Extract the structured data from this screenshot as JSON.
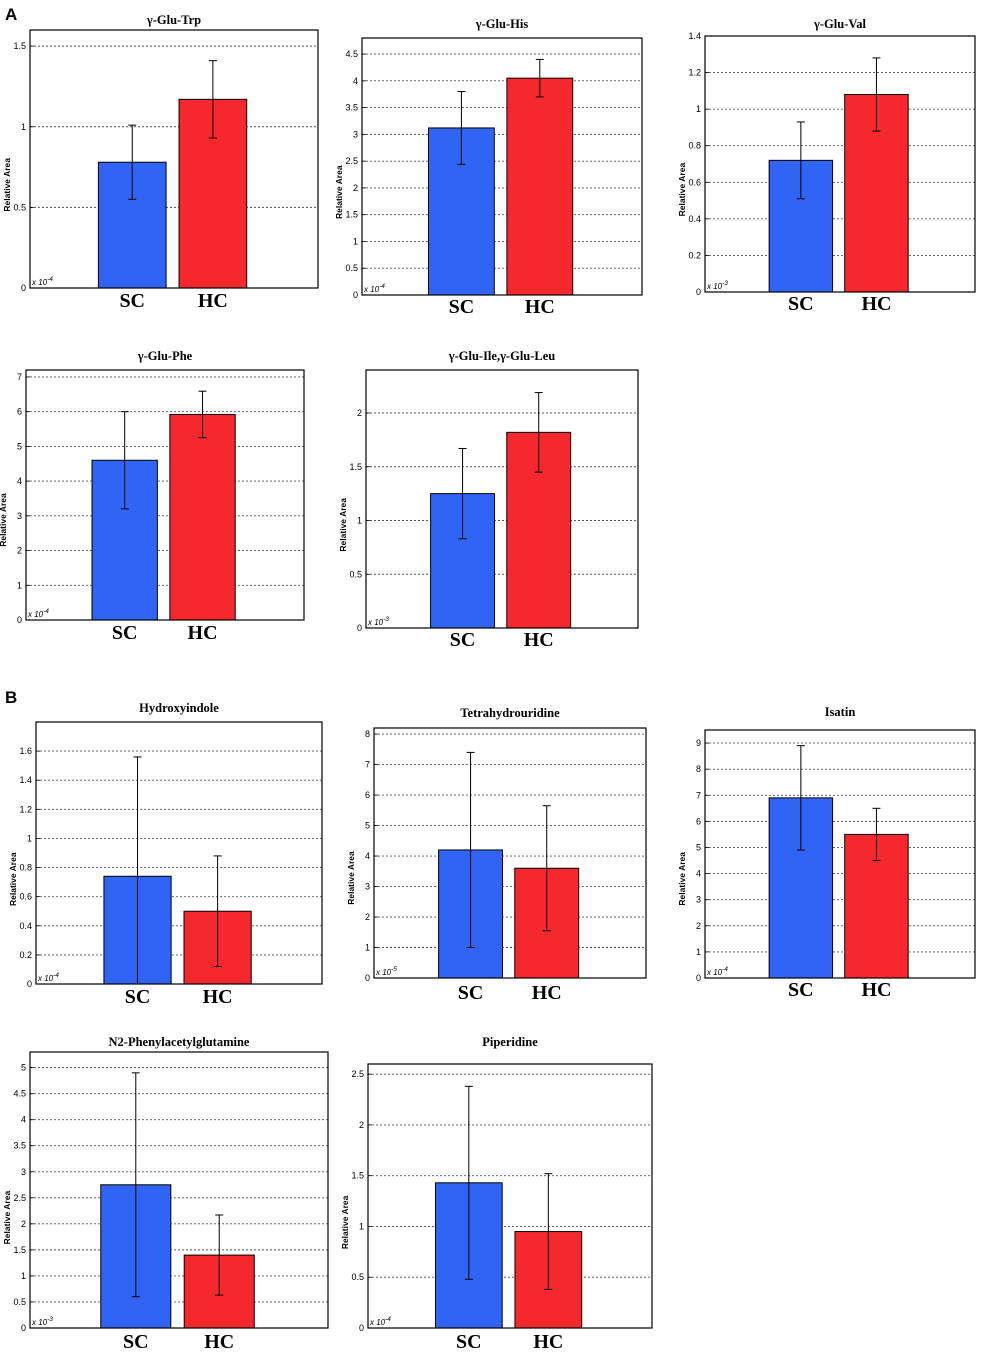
{
  "panel_labels": [
    "A",
    "B"
  ],
  "colors": {
    "SC": "#2f64f5",
    "HC": "#f5282d",
    "grid": "#555555",
    "frame": "#000000"
  },
  "chart_data": [
    {
      "type": "bar",
      "panel": "A",
      "title": "γ-Glu-Trp",
      "categories": [
        "SC",
        "HC"
      ],
      "values": [
        0.78,
        1.17
      ],
      "errors": [
        0.23,
        0.24
      ],
      "ylim": [
        0,
        1.6
      ],
      "ticks": [
        0,
        0.5,
        1,
        1.5
      ],
      "tick_labels": [
        "0",
        "0.5",
        "1",
        "1.5"
      ],
      "ylabel": "Relative Area",
      "multiplier": "x 10-4",
      "grid": true
    },
    {
      "type": "bar",
      "panel": "A",
      "title": "γ-Glu-His",
      "categories": [
        "SC",
        "HC"
      ],
      "values": [
        3.12,
        4.05
      ],
      "errors": [
        0.68,
        0.35
      ],
      "ylim": [
        0,
        4.8
      ],
      "ticks": [
        0,
        0.5,
        1,
        1.5,
        2,
        2.5,
        3,
        3.5,
        4,
        4.5
      ],
      "tick_labels": [
        "0",
        "0.5",
        "1",
        "1.5",
        "2",
        "2.5",
        "3",
        "3.5",
        "4",
        "4.5"
      ],
      "ylabel": "Relative Area",
      "multiplier": "x 10-4",
      "grid": true
    },
    {
      "type": "bar",
      "panel": "A",
      "title": "γ-Glu-Val",
      "categories": [
        "SC",
        "HC"
      ],
      "values": [
        0.72,
        1.08
      ],
      "errors": [
        0.21,
        0.2
      ],
      "ylim": [
        0,
        1.4
      ],
      "ticks": [
        0,
        0.2,
        0.4,
        0.6,
        0.8,
        1,
        1.2,
        1.4
      ],
      "tick_labels": [
        "0",
        "0.2",
        "0.4",
        "0.6",
        "0.8",
        "1",
        "1.2",
        "1.4"
      ],
      "ylabel": "Relative Area",
      "multiplier": "x 10-3",
      "grid": true
    },
    {
      "type": "bar",
      "panel": "A",
      "title": "γ-Glu-Phe",
      "categories": [
        "SC",
        "HC"
      ],
      "values": [
        4.6,
        5.92
      ],
      "errors": [
        1.4,
        0.67
      ],
      "ylim": [
        0,
        7.2
      ],
      "ticks": [
        0,
        1,
        2,
        3,
        4,
        5,
        6,
        7
      ],
      "tick_labels": [
        "0",
        "1",
        "2",
        "3",
        "4",
        "5",
        "6",
        "7"
      ],
      "ylabel": "Relative Area",
      "multiplier": "x 10-4",
      "grid": true
    },
    {
      "type": "bar",
      "panel": "A",
      "title": "γ-Glu-Ile,γ-Glu-Leu",
      "categories": [
        "SC",
        "HC"
      ],
      "values": [
        1.25,
        1.82
      ],
      "errors": [
        0.42,
        0.37
      ],
      "ylim": [
        0,
        2.4
      ],
      "ticks": [
        0,
        0.5,
        1,
        1.5,
        2
      ],
      "tick_labels": [
        "0",
        "0.5",
        "1",
        "1.5",
        "2"
      ],
      "ylabel": "Relative Area",
      "multiplier": "x 10-3",
      "grid": true
    },
    {
      "type": "bar",
      "panel": "B",
      "title": "Hydroxyindole",
      "categories": [
        "SC",
        "HC"
      ],
      "values": [
        0.74,
        0.5
      ],
      "errors": [
        0.82,
        0.38
      ],
      "ylim": [
        0,
        1.8
      ],
      "ticks": [
        0,
        0.2,
        0.4,
        0.6,
        0.8,
        1,
        1.2,
        1.4,
        1.6
      ],
      "tick_labels": [
        "0",
        "0.2",
        "0.4",
        "0.6",
        "0.8",
        "1",
        "1.2",
        "1.4",
        "1.6"
      ],
      "ylabel": "Relative Area",
      "multiplier": "x 10-4",
      "grid": true
    },
    {
      "type": "bar",
      "panel": "B",
      "title": "Tetrahydrouridine",
      "categories": [
        "SC",
        "HC"
      ],
      "values": [
        4.2,
        3.6
      ],
      "errors": [
        3.2,
        2.05
      ],
      "ylim": [
        0,
        8.2
      ],
      "ticks": [
        0,
        1,
        2,
        3,
        4,
        5,
        6,
        7,
        8
      ],
      "tick_labels": [
        "0",
        "1",
        "2",
        "3",
        "4",
        "5",
        "6",
        "7",
        "8"
      ],
      "ylabel": "Relative Area",
      "multiplier": "x 10-5",
      "grid": true
    },
    {
      "type": "bar",
      "panel": "B",
      "title": "Isatin",
      "categories": [
        "SC",
        "HC"
      ],
      "values": [
        6.9,
        5.5
      ],
      "errors": [
        2.0,
        1.0
      ],
      "ylim": [
        0,
        9.5
      ],
      "ticks": [
        0,
        1,
        2,
        3,
        4,
        5,
        6,
        7,
        8,
        9
      ],
      "tick_labels": [
        "0",
        "1",
        "2",
        "3",
        "4",
        "5",
        "6",
        "7",
        "8",
        "9"
      ],
      "ylabel": "Relative Area",
      "multiplier": "x 10-4",
      "grid": true
    },
    {
      "type": "bar",
      "panel": "B",
      "title": "N2-Phenylacetylglutamine",
      "categories": [
        "SC",
        "HC"
      ],
      "values": [
        2.75,
        1.4
      ],
      "errors": [
        2.15,
        0.77
      ],
      "ylim": [
        0,
        5.3
      ],
      "ticks": [
        0,
        0.5,
        1,
        1.5,
        2,
        2.5,
        3,
        3.5,
        4,
        4.5,
        5
      ],
      "tick_labels": [
        "0",
        "0.5",
        "1",
        "1.5",
        "2",
        "2.5",
        "3",
        "3.5",
        "4",
        "4.5",
        "5"
      ],
      "ylabel": "Relative Area",
      "multiplier": "x 10-3",
      "grid": true
    },
    {
      "type": "bar",
      "panel": "B",
      "title": "Piperidine",
      "categories": [
        "SC",
        "HC"
      ],
      "values": [
        1.43,
        0.95
      ],
      "errors": [
        0.95,
        0.57
      ],
      "ylim": [
        0,
        2.6
      ],
      "ticks": [
        0,
        0.5,
        1,
        1.5,
        2,
        2.5
      ],
      "tick_labels": [
        "0",
        "0.5",
        "1",
        "1.5",
        "2",
        "2.5"
      ],
      "ylabel": "Relative Area",
      "multiplier": "x 10-4",
      "grid": true
    }
  ]
}
